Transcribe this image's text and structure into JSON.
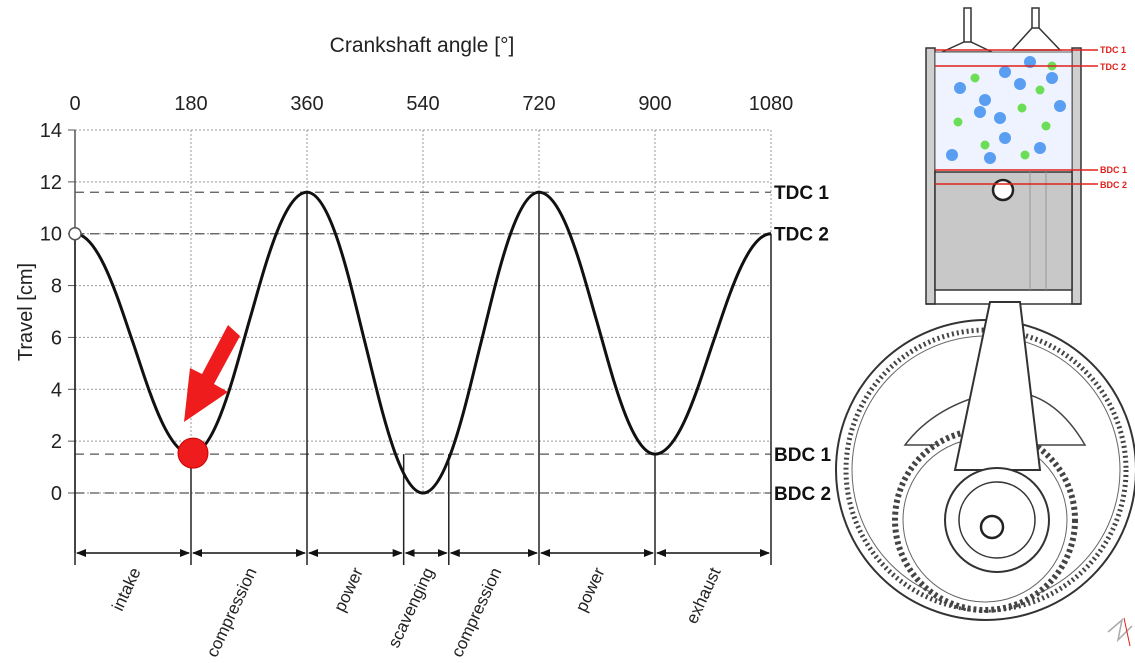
{
  "chart_data": {
    "type": "line",
    "title": "",
    "xlabel": "Crankshaft angle [°]",
    "ylabel": "Travel [cm]",
    "xlim": [
      0,
      1080
    ],
    "ylim": [
      0,
      14
    ],
    "x_ticks": [
      "0",
      "180",
      "360",
      "540",
      "720",
      "900",
      "1080"
    ],
    "y_ticks": [
      "14",
      "12",
      "10",
      "8",
      "6",
      "4",
      "2",
      "0"
    ],
    "grid": true,
    "series": [
      {
        "x": [
          0,
          90,
          180,
          270,
          360,
          450,
          540,
          630,
          720,
          810,
          900,
          990,
          1080
        ],
        "values": [
          10,
          5.8,
          1.5,
          6.6,
          11.6,
          5.8,
          0,
          5.8,
          11.6,
          6.6,
          1.5,
          5.8,
          10
        ]
      }
    ],
    "reference_lines": [
      {
        "label": "TDC 1",
        "y": 11.6
      },
      {
        "label": "TDC 2",
        "y": 10
      },
      {
        "label": "BDC 1",
        "y": 1.5
      },
      {
        "label": "BDC 2",
        "y": 0
      }
    ],
    "phases": [
      {
        "label": "intake",
        "from": 0,
        "to": 180
      },
      {
        "label": "compression",
        "from": 180,
        "to": 360
      },
      {
        "label": "power",
        "from": 360,
        "to": 510
      },
      {
        "label": "scavenging",
        "from": 510,
        "to": 580
      },
      {
        "label": "compression",
        "from": 580,
        "to": 720
      },
      {
        "label": "power",
        "from": 720,
        "to": 900
      },
      {
        "label": "exhaust",
        "from": 900,
        "to": 1080
      }
    ],
    "marker": {
      "x": 180,
      "y": 1.5,
      "color": "#ee1c1c"
    }
  },
  "engine_labels": {
    "tdc1": "TDC 1",
    "tdc2": "TDC 2",
    "bdc1": "BDC 1",
    "bdc2": "BDC 2"
  },
  "colors": {
    "curve": "#111111",
    "grid": "#9a9a9a",
    "marker": "#ee1c1c",
    "engine_lines": "#e0201b"
  }
}
